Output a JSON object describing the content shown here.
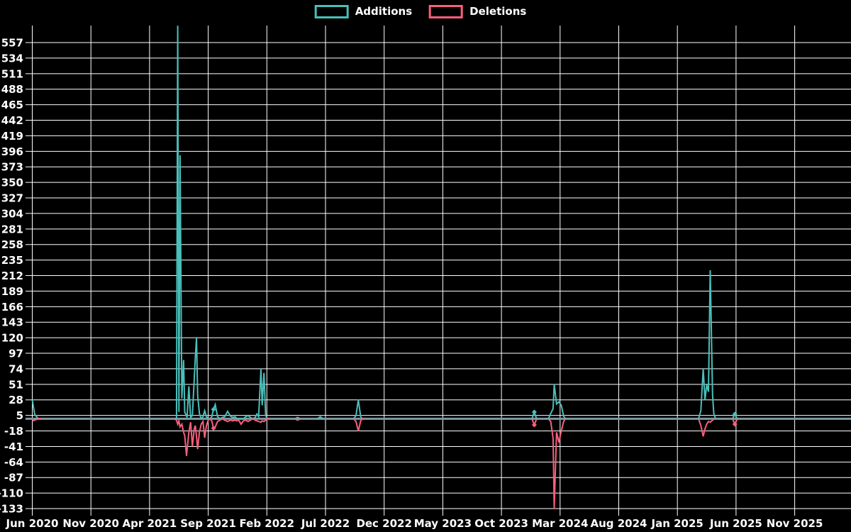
{
  "chart_data": {
    "type": "line",
    "title": "",
    "description": "Weekly code additions and deletions over time (black background, white grid)",
    "background_color": "#000000",
    "grid": true,
    "grid_color": "#ffffff",
    "text_color": "#ffffff",
    "zero_line_color": "#7d98a1",
    "legend_position": "top-center",
    "legend": [
      {
        "name": "Additions",
        "color": "#49bfba"
      },
      {
        "name": "Deletions",
        "color": "#f85f7d"
      }
    ],
    "y_tick_values": [
      557,
      534,
      511,
      488,
      465,
      442,
      419,
      396,
      373,
      350,
      327,
      304,
      281,
      258,
      235,
      212,
      189,
      166,
      143,
      120,
      97,
      74,
      51,
      28,
      5,
      -18,
      -41,
      -64,
      -87,
      -110,
      -133
    ],
    "x_tick_labels": [
      "Jun 2020",
      "Nov 2020",
      "Apr 2021",
      "Sep 2021",
      "Feb 2022",
      "Jul 2022",
      "Dec 2022",
      "May 2023",
      "Oct 2023",
      "Mar 2024",
      "Aug 2024",
      "Jan 2025",
      "Jun 2025",
      "Nov 2025"
    ],
    "x_unit": "months since Jun 2020 (5 months between labeled ticks)",
    "ylim": [
      -133,
      557
    ],
    "xlim_months": [
      0,
      69.8
    ],
    "series": [
      {
        "name": "Additions",
        "color": "#49bfba",
        "segments": [
          [
            [
              0,
              28
            ],
            [
              0.2,
              7
            ],
            [
              0.5,
              0
            ],
            [
              0.8,
              0
            ]
          ],
          [
            [
              12.1,
              0
            ],
            [
              12.3,
              0
            ],
            [
              12.4,
              582
            ],
            [
              12.5,
              10
            ],
            [
              12.6,
              390
            ],
            [
              12.75,
              30
            ],
            [
              12.9,
              87
            ],
            [
              13.0,
              10
            ],
            [
              13.2,
              2
            ],
            [
              13.35,
              48
            ],
            [
              13.5,
              2
            ],
            [
              13.65,
              5
            ],
            [
              13.9,
              90
            ],
            [
              14.0,
              120
            ],
            [
              14.1,
              35
            ],
            [
              14.25,
              8
            ],
            [
              14.4,
              0
            ],
            [
              14.55,
              3
            ],
            [
              14.7,
              12
            ],
            [
              14.85,
              3
            ],
            [
              15.0,
              0
            ],
            [
              15.15,
              0
            ],
            [
              15.3,
              3
            ],
            [
              15.45,
              14
            ],
            [
              15.6,
              21
            ],
            [
              15.8,
              3
            ],
            [
              16.0,
              0
            ],
            [
              16.2,
              2
            ],
            [
              16.4,
              3
            ],
            [
              16.65,
              11
            ],
            [
              16.9,
              4
            ],
            [
              17.1,
              2
            ],
            [
              17.3,
              3
            ],
            [
              17.45,
              0
            ],
            [
              17.6,
              0
            ],
            [
              17.8,
              0
            ],
            [
              18.0,
              0
            ],
            [
              18.2,
              3
            ],
            [
              18.4,
              5
            ],
            [
              18.6,
              2
            ],
            [
              18.8,
              0
            ],
            [
              19.0,
              2
            ],
            [
              19.15,
              7
            ],
            [
              19.3,
              3
            ],
            [
              19.5,
              74
            ],
            [
              19.6,
              20
            ],
            [
              19.75,
              68
            ],
            [
              19.9,
              5
            ],
            [
              20.05,
              0
            ],
            [
              20.2,
              0
            ]
          ],
          [
            [
              22.4,
              0
            ],
            [
              22.6,
              2
            ],
            [
              22.9,
              0
            ]
          ],
          [
            [
              24.3,
              0
            ],
            [
              24.55,
              3
            ],
            [
              24.8,
              0
            ]
          ],
          [
            [
              27.4,
              0
            ],
            [
              27.6,
              5
            ],
            [
              27.8,
              28
            ],
            [
              28.0,
              3
            ],
            [
              28.15,
              0
            ],
            [
              28.3,
              0
            ]
          ],
          [
            [
              42.6,
              0
            ],
            [
              42.8,
              10
            ],
            [
              43.0,
              0
            ]
          ],
          [
            [
              44.0,
              0
            ],
            [
              44.2,
              8
            ],
            [
              44.4,
              15
            ],
            [
              44.5,
              51
            ],
            [
              44.7,
              22
            ],
            [
              44.9,
              25
            ],
            [
              45.1,
              20
            ],
            [
              45.3,
              4
            ],
            [
              45.45,
              0
            ]
          ],
          [
            [
              56.8,
              0
            ],
            [
              57.0,
              12
            ],
            [
              57.2,
              74
            ],
            [
              57.35,
              28
            ],
            [
              57.5,
              50
            ],
            [
              57.65,
              40
            ],
            [
              57.8,
              220
            ],
            [
              58.0,
              35
            ],
            [
              58.1,
              8
            ],
            [
              58.25,
              0
            ]
          ],
          [
            [
              59.7,
              0
            ],
            [
              59.9,
              7
            ],
            [
              60.1,
              0
            ]
          ]
        ],
        "markers": [
          [
            42.8,
            10
          ],
          [
            59.9,
            7
          ],
          [
            15.45,
            14
          ]
        ]
      },
      {
        "name": "Deletions",
        "color": "#f85f7d",
        "segments": [
          [
            [
              0,
              -3
            ],
            [
              0.2,
              -2
            ],
            [
              0.5,
              0
            ],
            [
              0.8,
              0
            ]
          ],
          [
            [
              12.1,
              0
            ],
            [
              12.3,
              -2
            ],
            [
              12.4,
              -8
            ],
            [
              12.5,
              -3
            ],
            [
              12.6,
              -12
            ],
            [
              12.75,
              -8
            ],
            [
              12.9,
              -20
            ],
            [
              13.0,
              -25
            ],
            [
              13.15,
              -55
            ],
            [
              13.35,
              -20
            ],
            [
              13.5,
              -5
            ],
            [
              13.65,
              -41
            ],
            [
              13.8,
              -15
            ],
            [
              13.9,
              -10
            ],
            [
              14.0,
              -26
            ],
            [
              14.1,
              -45
            ],
            [
              14.25,
              -20
            ],
            [
              14.4,
              -8
            ],
            [
              14.55,
              -4
            ],
            [
              14.7,
              -28
            ],
            [
              14.85,
              -10
            ],
            [
              15.0,
              -2
            ],
            [
              15.15,
              0
            ],
            [
              15.3,
              -3
            ],
            [
              15.45,
              -14
            ],
            [
              15.6,
              -12
            ],
            [
              15.8,
              -4
            ],
            [
              16.0,
              -2
            ],
            [
              16.2,
              0
            ],
            [
              16.4,
              -2
            ],
            [
              16.65,
              -4
            ],
            [
              16.9,
              -2
            ],
            [
              17.1,
              -3
            ],
            [
              17.3,
              -2
            ],
            [
              17.45,
              -3
            ],
            [
              17.6,
              -2
            ],
            [
              17.8,
              -8
            ],
            [
              18.0,
              -3
            ],
            [
              18.2,
              -2
            ],
            [
              18.4,
              -4
            ],
            [
              18.6,
              -2
            ],
            [
              18.8,
              0
            ],
            [
              19.0,
              -2
            ],
            [
              19.15,
              -3
            ],
            [
              19.3,
              -4
            ],
            [
              19.5,
              -5
            ],
            [
              19.6,
              -3
            ],
            [
              19.75,
              -4
            ],
            [
              19.9,
              -2
            ],
            [
              20.05,
              0
            ],
            [
              20.2,
              0
            ]
          ],
          [
            [
              22.4,
              0
            ],
            [
              22.6,
              -2
            ],
            [
              22.9,
              0
            ]
          ],
          [
            [
              27.4,
              0
            ],
            [
              27.6,
              -4
            ],
            [
              27.8,
              -18
            ],
            [
              28.0,
              -3
            ],
            [
              28.15,
              0
            ],
            [
              28.3,
              0
            ]
          ],
          [
            [
              42.6,
              0
            ],
            [
              42.8,
              -9
            ],
            [
              43.0,
              0
            ]
          ],
          [
            [
              44.0,
              0
            ],
            [
              44.2,
              -4
            ],
            [
              44.4,
              -29
            ],
            [
              44.5,
              -133
            ],
            [
              44.7,
              -20
            ],
            [
              44.9,
              -35
            ],
            [
              45.1,
              -18
            ],
            [
              45.3,
              -4
            ],
            [
              45.45,
              0
            ]
          ],
          [
            [
              56.8,
              0
            ],
            [
              57.0,
              -10
            ],
            [
              57.2,
              -26
            ],
            [
              57.35,
              -15
            ],
            [
              57.5,
              -8
            ],
            [
              57.65,
              -4
            ],
            [
              57.8,
              -5
            ],
            [
              58.0,
              -2
            ],
            [
              58.15,
              0
            ]
          ],
          [
            [
              59.7,
              0
            ],
            [
              59.9,
              -8
            ],
            [
              60.1,
              0
            ]
          ]
        ],
        "markers": [
          [
            42.8,
            -9
          ],
          [
            59.9,
            -8
          ],
          [
            15.45,
            -14
          ]
        ]
      }
    ]
  }
}
